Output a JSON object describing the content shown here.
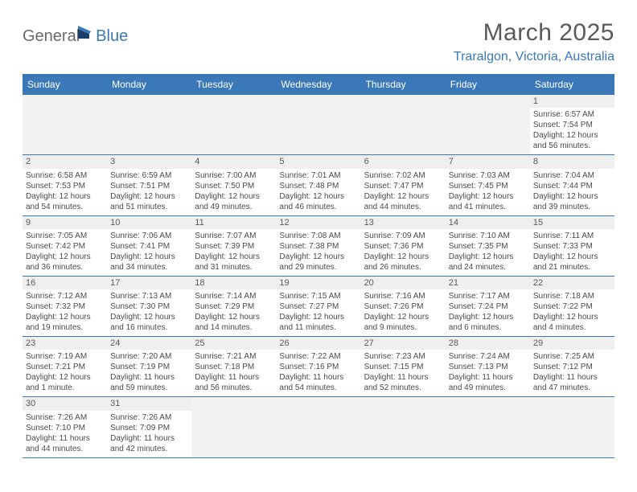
{
  "logo": {
    "part1": "General",
    "part2": "Blue"
  },
  "title": "March 2025",
  "location": "Traralgon, Victoria, Australia",
  "colors": {
    "header_bg": "#3b78b8",
    "header_text": "#ffffff",
    "daynum_bg": "#efefef",
    "border": "#3b78b8",
    "body_text": "#4a4a4a",
    "title_text": "#5a5a5a",
    "location_text": "#3b78b8"
  },
  "day_names": [
    "Sunday",
    "Monday",
    "Tuesday",
    "Wednesday",
    "Thursday",
    "Friday",
    "Saturday"
  ],
  "weeks": [
    [
      null,
      null,
      null,
      null,
      null,
      null,
      {
        "n": "1",
        "sr": "Sunrise: 6:57 AM",
        "ss": "Sunset: 7:54 PM",
        "dl1": "Daylight: 12 hours",
        "dl2": "and 56 minutes."
      }
    ],
    [
      {
        "n": "2",
        "sr": "Sunrise: 6:58 AM",
        "ss": "Sunset: 7:53 PM",
        "dl1": "Daylight: 12 hours",
        "dl2": "and 54 minutes."
      },
      {
        "n": "3",
        "sr": "Sunrise: 6:59 AM",
        "ss": "Sunset: 7:51 PM",
        "dl1": "Daylight: 12 hours",
        "dl2": "and 51 minutes."
      },
      {
        "n": "4",
        "sr": "Sunrise: 7:00 AM",
        "ss": "Sunset: 7:50 PM",
        "dl1": "Daylight: 12 hours",
        "dl2": "and 49 minutes."
      },
      {
        "n": "5",
        "sr": "Sunrise: 7:01 AM",
        "ss": "Sunset: 7:48 PM",
        "dl1": "Daylight: 12 hours",
        "dl2": "and 46 minutes."
      },
      {
        "n": "6",
        "sr": "Sunrise: 7:02 AM",
        "ss": "Sunset: 7:47 PM",
        "dl1": "Daylight: 12 hours",
        "dl2": "and 44 minutes."
      },
      {
        "n": "7",
        "sr": "Sunrise: 7:03 AM",
        "ss": "Sunset: 7:45 PM",
        "dl1": "Daylight: 12 hours",
        "dl2": "and 41 minutes."
      },
      {
        "n": "8",
        "sr": "Sunrise: 7:04 AM",
        "ss": "Sunset: 7:44 PM",
        "dl1": "Daylight: 12 hours",
        "dl2": "and 39 minutes."
      }
    ],
    [
      {
        "n": "9",
        "sr": "Sunrise: 7:05 AM",
        "ss": "Sunset: 7:42 PM",
        "dl1": "Daylight: 12 hours",
        "dl2": "and 36 minutes."
      },
      {
        "n": "10",
        "sr": "Sunrise: 7:06 AM",
        "ss": "Sunset: 7:41 PM",
        "dl1": "Daylight: 12 hours",
        "dl2": "and 34 minutes."
      },
      {
        "n": "11",
        "sr": "Sunrise: 7:07 AM",
        "ss": "Sunset: 7:39 PM",
        "dl1": "Daylight: 12 hours",
        "dl2": "and 31 minutes."
      },
      {
        "n": "12",
        "sr": "Sunrise: 7:08 AM",
        "ss": "Sunset: 7:38 PM",
        "dl1": "Daylight: 12 hours",
        "dl2": "and 29 minutes."
      },
      {
        "n": "13",
        "sr": "Sunrise: 7:09 AM",
        "ss": "Sunset: 7:36 PM",
        "dl1": "Daylight: 12 hours",
        "dl2": "and 26 minutes."
      },
      {
        "n": "14",
        "sr": "Sunrise: 7:10 AM",
        "ss": "Sunset: 7:35 PM",
        "dl1": "Daylight: 12 hours",
        "dl2": "and 24 minutes."
      },
      {
        "n": "15",
        "sr": "Sunrise: 7:11 AM",
        "ss": "Sunset: 7:33 PM",
        "dl1": "Daylight: 12 hours",
        "dl2": "and 21 minutes."
      }
    ],
    [
      {
        "n": "16",
        "sr": "Sunrise: 7:12 AM",
        "ss": "Sunset: 7:32 PM",
        "dl1": "Daylight: 12 hours",
        "dl2": "and 19 minutes."
      },
      {
        "n": "17",
        "sr": "Sunrise: 7:13 AM",
        "ss": "Sunset: 7:30 PM",
        "dl1": "Daylight: 12 hours",
        "dl2": "and 16 minutes."
      },
      {
        "n": "18",
        "sr": "Sunrise: 7:14 AM",
        "ss": "Sunset: 7:29 PM",
        "dl1": "Daylight: 12 hours",
        "dl2": "and 14 minutes."
      },
      {
        "n": "19",
        "sr": "Sunrise: 7:15 AM",
        "ss": "Sunset: 7:27 PM",
        "dl1": "Daylight: 12 hours",
        "dl2": "and 11 minutes."
      },
      {
        "n": "20",
        "sr": "Sunrise: 7:16 AM",
        "ss": "Sunset: 7:26 PM",
        "dl1": "Daylight: 12 hours",
        "dl2": "and 9 minutes."
      },
      {
        "n": "21",
        "sr": "Sunrise: 7:17 AM",
        "ss": "Sunset: 7:24 PM",
        "dl1": "Daylight: 12 hours",
        "dl2": "and 6 minutes."
      },
      {
        "n": "22",
        "sr": "Sunrise: 7:18 AM",
        "ss": "Sunset: 7:22 PM",
        "dl1": "Daylight: 12 hours",
        "dl2": "and 4 minutes."
      }
    ],
    [
      {
        "n": "23",
        "sr": "Sunrise: 7:19 AM",
        "ss": "Sunset: 7:21 PM",
        "dl1": "Daylight: 12 hours",
        "dl2": "and 1 minute."
      },
      {
        "n": "24",
        "sr": "Sunrise: 7:20 AM",
        "ss": "Sunset: 7:19 PM",
        "dl1": "Daylight: 11 hours",
        "dl2": "and 59 minutes."
      },
      {
        "n": "25",
        "sr": "Sunrise: 7:21 AM",
        "ss": "Sunset: 7:18 PM",
        "dl1": "Daylight: 11 hours",
        "dl2": "and 56 minutes."
      },
      {
        "n": "26",
        "sr": "Sunrise: 7:22 AM",
        "ss": "Sunset: 7:16 PM",
        "dl1": "Daylight: 11 hours",
        "dl2": "and 54 minutes."
      },
      {
        "n": "27",
        "sr": "Sunrise: 7:23 AM",
        "ss": "Sunset: 7:15 PM",
        "dl1": "Daylight: 11 hours",
        "dl2": "and 52 minutes."
      },
      {
        "n": "28",
        "sr": "Sunrise: 7:24 AM",
        "ss": "Sunset: 7:13 PM",
        "dl1": "Daylight: 11 hours",
        "dl2": "and 49 minutes."
      },
      {
        "n": "29",
        "sr": "Sunrise: 7:25 AM",
        "ss": "Sunset: 7:12 PM",
        "dl1": "Daylight: 11 hours",
        "dl2": "and 47 minutes."
      }
    ],
    [
      {
        "n": "30",
        "sr": "Sunrise: 7:26 AM",
        "ss": "Sunset: 7:10 PM",
        "dl1": "Daylight: 11 hours",
        "dl2": "and 44 minutes."
      },
      {
        "n": "31",
        "sr": "Sunrise: 7:26 AM",
        "ss": "Sunset: 7:09 PM",
        "dl1": "Daylight: 11 hours",
        "dl2": "and 42 minutes."
      },
      null,
      null,
      null,
      null,
      null
    ]
  ]
}
